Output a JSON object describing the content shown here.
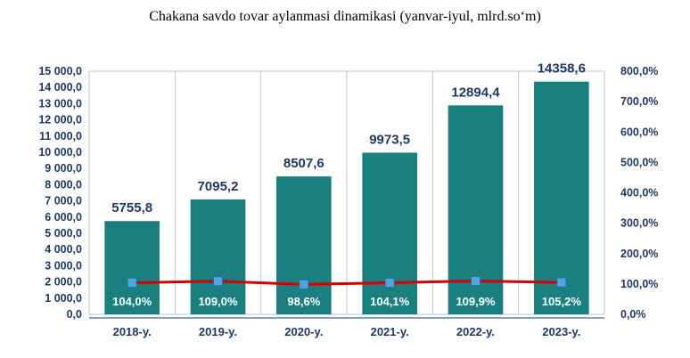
{
  "title": "Chakana savdo tovar aylanmasi dinamikasi (yanvar-iyul, mlrd.so‘m)",
  "colors": {
    "bar": "#1a7f7f",
    "line": "#d40000",
    "marker": "#4da6e0",
    "grid": "#bcc6d6",
    "text": "#1f3864"
  },
  "chart_data": {
    "type": "bar",
    "categories": [
      "2018-y.",
      "2019-y.",
      "2020-y.",
      "2021-y.",
      "2022-y.",
      "2023-y."
    ],
    "series": [
      {
        "values": [
          5755.8,
          7095.2,
          8507.6,
          9973.5,
          12894.4,
          14358.6
        ],
        "labels": [
          "5755,8",
          "7095,2",
          "8507,6",
          "9973,5",
          "12894,4",
          "14358,6"
        ]
      },
      {
        "type": "line",
        "axis": "right",
        "values": [
          104.0,
          109.0,
          98.6,
          104.1,
          109.9,
          105.2
        ],
        "labels": [
          "104,0%",
          "109,0%",
          "98,6%",
          "104,1%",
          "109,9%",
          "105,2%"
        ]
      }
    ],
    "left_axis": {
      "ylim": [
        0,
        15000
      ],
      "ticks": [
        "0,0",
        "1 000,0",
        "2 000,0",
        "3 000,0",
        "4 000,0",
        "5 000,0",
        "6 000,0",
        "7 000,0",
        "8 000,0",
        "9 000,0",
        "10 000,0",
        "11 000,0",
        "12 000,0",
        "13 000,0",
        "14 000,0",
        "15 000,0"
      ]
    },
    "right_axis": {
      "ylim": [
        0,
        800
      ],
      "ticks": [
        "0,0%",
        "100,0%",
        "200,0%",
        "300,0%",
        "400,0%",
        "500,0%",
        "600,0%",
        "700,0%",
        "800,0%"
      ]
    },
    "grid": "vertical category separators",
    "legend": "none"
  }
}
